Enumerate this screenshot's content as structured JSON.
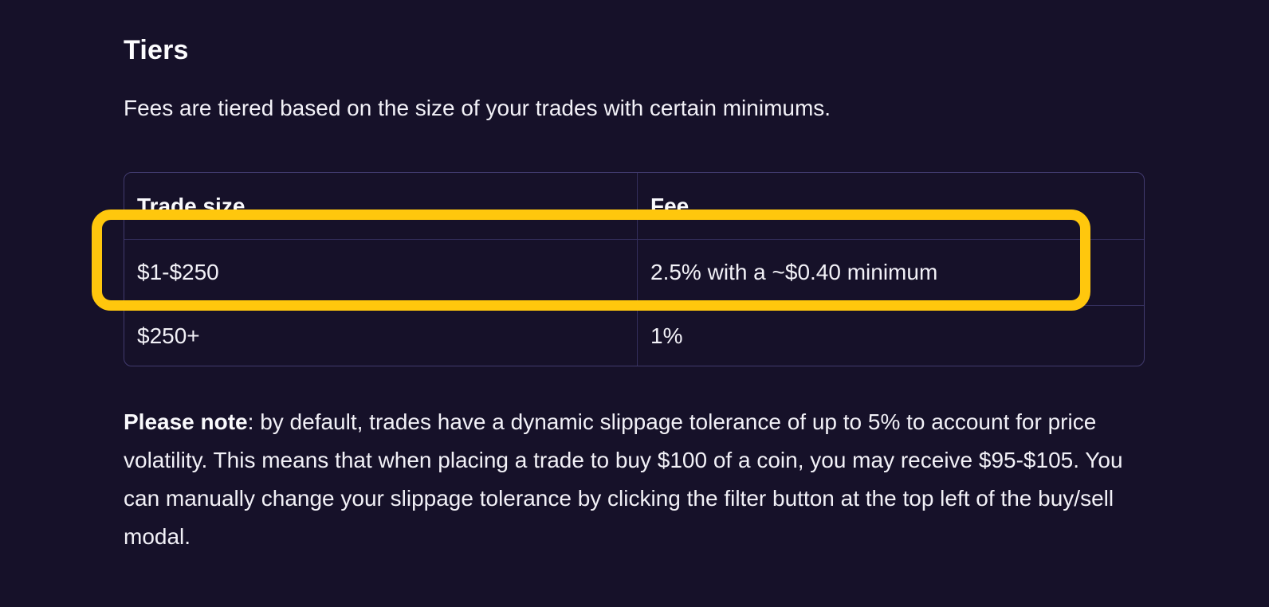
{
  "colors": {
    "background": "#161129",
    "table_border": "#413B6E",
    "table_divider": "#342F5D",
    "highlight": "#FFC70D",
    "text": "#F2F1F7"
  },
  "section": {
    "title": "Tiers",
    "intro": "Fees are tiered based on the size of your trades with certain minimums."
  },
  "fee_table": {
    "columns": [
      "Trade size",
      "Fee"
    ],
    "rows": [
      {
        "trade_size": "$1-$250",
        "fee": "2.5% with a ~$0.40 minimum",
        "highlighted": true
      },
      {
        "trade_size": "$250+",
        "fee": "1%",
        "highlighted": false
      }
    ]
  },
  "note": {
    "label": "Please note",
    "text": ": by default, trades have a dynamic slippage tolerance of up to 5% to account for price volatility. This means that when placing a trade to buy $100 of a coin, you may receive $95-$105. You can manually change your slippage tolerance by clicking the filter button at the top left of the buy/sell modal."
  }
}
